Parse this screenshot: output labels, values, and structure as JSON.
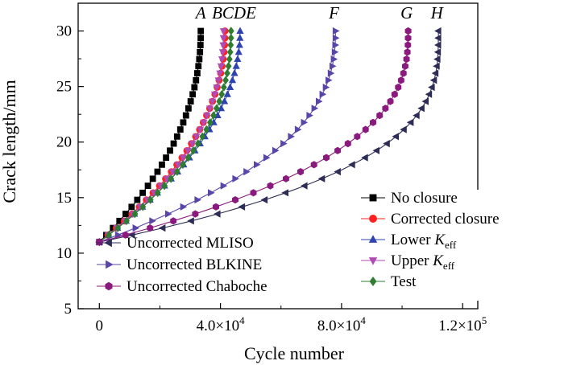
{
  "chart_data": {
    "type": "line",
    "xlabel": "Cycle number",
    "ylabel": "Crack length/mm",
    "xlim": [
      -7000,
      125000
    ],
    "ylim": [
      5,
      32.5
    ],
    "x_ticks": [
      {
        "value": 0,
        "label": "0"
      },
      {
        "value": 40000,
        "mant": "4.0×10",
        "exp": "4"
      },
      {
        "value": 80000,
        "mant": "8.0×10",
        "exp": "4"
      },
      {
        "value": 120000,
        "mant": "1.2×10",
        "exp": "5"
      }
    ],
    "y_ticks": [
      5,
      10,
      15,
      20,
      25,
      30
    ],
    "curve_letters": [
      {
        "text": "A",
        "x": 33500
      },
      {
        "text": "BCDE",
        "x": 44500
      },
      {
        "text": "F",
        "x": 77500
      },
      {
        "text": "G",
        "x": 101500
      },
      {
        "text": "H",
        "x": 111500
      }
    ],
    "legend_right": [
      {
        "label": "No closure",
        "series": 0
      },
      {
        "label": "Corrected closure",
        "series": 1
      },
      {
        "label": "Lower K",
        "sub": "eff",
        "series": 2
      },
      {
        "label": "Upper K",
        "sub": "eff",
        "series": 3
      },
      {
        "label": "Test",
        "series": 4
      }
    ],
    "legend_left": [
      {
        "label": "Uncorrected MLISO",
        "series": 5
      },
      {
        "label": "Uncorrected BLKINE",
        "series": 6
      },
      {
        "label": "Uncorrected Chaboche",
        "series": 7
      }
    ],
    "series": [
      {
        "marker": "square",
        "color": "#000000",
        "N_end": 33500,
        "a0": 11,
        "a_end": 30,
        "shape": 2.1
      },
      {
        "marker": "circle",
        "color": "#ff2020",
        "N_end": 41500,
        "a0": 11,
        "a_end": 30,
        "shape": 2.1
      },
      {
        "marker": "triangle-up",
        "color": "#2e43b0",
        "N_end": 46500,
        "a0": 11,
        "a_end": 30,
        "shape": 2.0
      },
      {
        "marker": "triangle-down",
        "color": "#b04bb5",
        "N_end": 41000,
        "a0": 11,
        "a_end": 30,
        "shape": 2.2
      },
      {
        "marker": "diamond",
        "color": "#2e7d32",
        "N_end": 43500,
        "a0": 11,
        "a_end": 30,
        "shape": 2.2
      },
      {
        "marker": "triangle-left",
        "color": "#2d2d55",
        "N_end": 112000,
        "a0": 11,
        "a_end": 30,
        "shape": 3.0
      },
      {
        "marker": "triangle-right",
        "color": "#5a45a8",
        "N_end": 78000,
        "a0": 11,
        "a_end": 30,
        "shape": 2.4
      },
      {
        "marker": "hexagon",
        "color": "#8b1a7e",
        "N_end": 102000,
        "a0": 11,
        "a_end": 30,
        "shape": 2.6
      }
    ]
  }
}
